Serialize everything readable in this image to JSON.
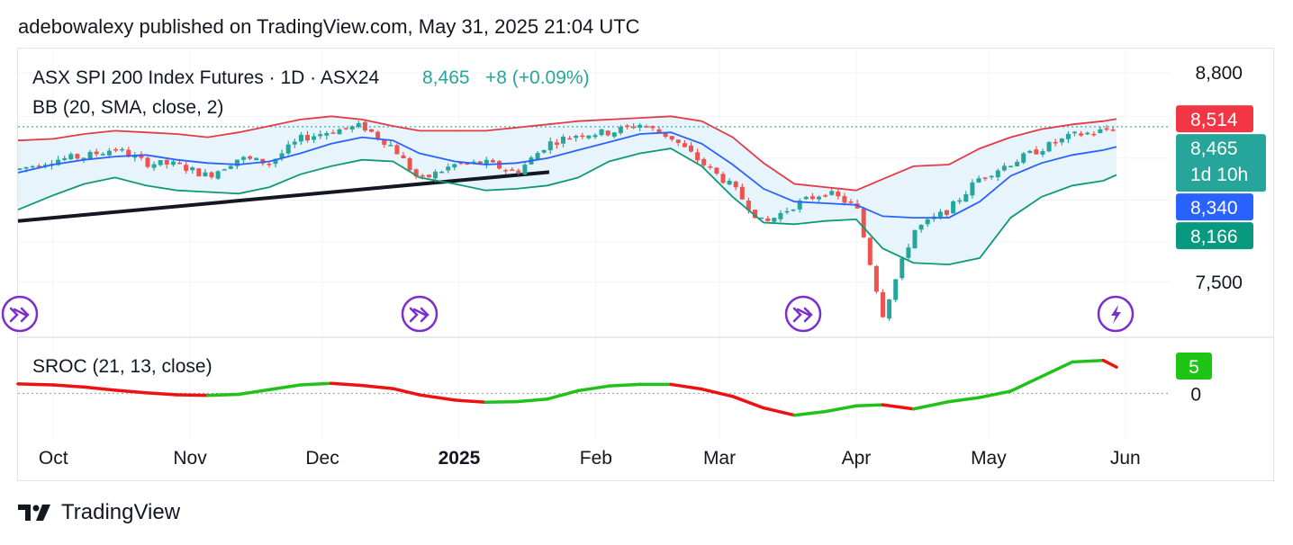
{
  "header": {
    "published": "adebowalexy published on TradingView.com, May 31, 2025 21:04 UTC"
  },
  "footer": {
    "brand": "TradingView"
  },
  "colors": {
    "up": "#26a69a",
    "down": "#ef5350",
    "bb_upper": "#e53945",
    "bb_basis": "#2962ff",
    "bb_lower": "#0f9a76",
    "bb_fill": "#e8f4fb",
    "sroc_up": "#22c11a",
    "sroc_down": "#ee1111",
    "trendline": "#131722",
    "event": "#7b2fd0"
  },
  "chart_data": [
    {
      "type": "candlestick",
      "title": "ASX SPI 200 Index Futures · 1D · ASX24",
      "last_price": "8,465",
      "change": "+8 (+0.09%)",
      "indicator_label": "BB (20, SMA, close, 2)",
      "x_labels": [
        "Oct",
        "Nov",
        "Dec",
        "2025",
        "Feb",
        "Mar",
        "Apr",
        "May",
        "Jun"
      ],
      "y_ticks": [
        "8,800",
        "7,500"
      ],
      "price_badges": [
        {
          "label": "8,514",
          "value": 8514,
          "color": "#f23645",
          "role": "bb-upper"
        },
        {
          "label": "8,465",
          "sub": "1d 10h",
          "value": 8465,
          "color": "#26a69a",
          "role": "last-price"
        },
        {
          "label": "8,340",
          "value": 8340,
          "color": "#2962ff",
          "role": "bb-basis"
        },
        {
          "label": "8,166",
          "value": 8166,
          "color": "#089981",
          "role": "bb-lower"
        }
      ],
      "ylim": [
        7175,
        8850
      ],
      "close_series": [
        {
          "date": "2024-09-23",
          "close": 8200
        },
        {
          "date": "2024-10-01",
          "close": 8260
        },
        {
          "date": "2024-10-08",
          "close": 8280
        },
        {
          "date": "2024-10-15",
          "close": 8330
        },
        {
          "date": "2024-10-22",
          "close": 8240
        },
        {
          "date": "2024-10-29",
          "close": 8230
        },
        {
          "date": "2024-11-05",
          "close": 8160
        },
        {
          "date": "2024-11-12",
          "close": 8270
        },
        {
          "date": "2024-11-19",
          "close": 8240
        },
        {
          "date": "2024-11-26",
          "close": 8390
        },
        {
          "date": "2024-12-03",
          "close": 8440
        },
        {
          "date": "2024-12-10",
          "close": 8470
        },
        {
          "date": "2024-12-17",
          "close": 8340
        },
        {
          "date": "2024-12-23",
          "close": 8130
        },
        {
          "date": "2024-12-31",
          "close": 8230
        },
        {
          "date": "2025-01-07",
          "close": 8240
        },
        {
          "date": "2025-01-14",
          "close": 8180
        },
        {
          "date": "2025-01-21",
          "close": 8360
        },
        {
          "date": "2025-01-28",
          "close": 8420
        },
        {
          "date": "2025-02-04",
          "close": 8430
        },
        {
          "date": "2025-02-11",
          "close": 8480
        },
        {
          "date": "2025-02-18",
          "close": 8400
        },
        {
          "date": "2025-02-25",
          "close": 8240
        },
        {
          "date": "2025-03-04",
          "close": 8090
        },
        {
          "date": "2025-03-11",
          "close": 7860
        },
        {
          "date": "2025-03-18",
          "close": 7980
        },
        {
          "date": "2025-03-25",
          "close": 8060
        },
        {
          "date": "2025-04-01",
          "close": 7970
        },
        {
          "date": "2025-04-07",
          "close": 7300
        },
        {
          "date": "2025-04-14",
          "close": 7820
        },
        {
          "date": "2025-04-22",
          "close": 7950
        },
        {
          "date": "2025-04-29",
          "close": 8150
        },
        {
          "date": "2025-05-06",
          "close": 8240
        },
        {
          "date": "2025-05-13",
          "close": 8330
        },
        {
          "date": "2025-05-20",
          "close": 8410
        },
        {
          "date": "2025-05-27",
          "close": 8440
        },
        {
          "date": "2025-05-30",
          "close": 8465
        }
      ],
      "bollinger": {
        "upper": [
          8380,
          8390,
          8420,
          8440,
          8430,
          8420,
          8400,
          8430,
          8470,
          8510,
          8530,
          8510,
          8470,
          8440,
          8440,
          8440,
          8460,
          8480,
          8500,
          8510,
          8520,
          8530,
          8500,
          8400,
          8240,
          8110,
          8090,
          8070,
          8140,
          8220,
          8230,
          8330,
          8400,
          8450,
          8480,
          8500,
          8514
        ],
        "basis": [
          8180,
          8230,
          8260,
          8280,
          8290,
          8260,
          8240,
          8230,
          8250,
          8300,
          8360,
          8400,
          8380,
          8300,
          8250,
          8230,
          8240,
          8270,
          8320,
          8370,
          8420,
          8430,
          8360,
          8230,
          8080,
          8000,
          7990,
          7980,
          7910,
          7900,
          7900,
          8000,
          8160,
          8240,
          8290,
          8320,
          8340
        ],
        "lower": [
          7950,
          8040,
          8110,
          8150,
          8100,
          8070,
          8060,
          8050,
          8090,
          8170,
          8220,
          8260,
          8250,
          8150,
          8110,
          8070,
          8080,
          8100,
          8150,
          8250,
          8300,
          8330,
          8220,
          8030,
          7870,
          7860,
          7880,
          7890,
          7710,
          7620,
          7610,
          7650,
          7900,
          8030,
          8100,
          8130,
          8166
        ]
      },
      "trendline": [
        {
          "date": "2024-09-23",
          "price": 7880
        },
        {
          "date": "2025-01-28",
          "price": 8200
        }
      ]
    },
    {
      "type": "line",
      "title": "SROC (21, 13, close)",
      "y_ticks": [
        "0"
      ],
      "value_badge": "5",
      "series": [
        {
          "values": [
            1.8,
            1.6,
            1.2,
            0.6,
            0.1,
            -0.3,
            -0.4,
            -0.2,
            0.7,
            1.6,
            1.9,
            1.5,
            0.9,
            -0.3,
            -1.3,
            -1.7,
            -1.6,
            -1.1,
            0.5,
            1.4,
            1.7,
            1.7,
            0.8,
            -0.6,
            -2.8,
            -4.2,
            -3.5,
            -2.4,
            -2.2,
            -3.0,
            -1.6,
            -0.8,
            0.4,
            3.2,
            6.0,
            6.3,
            5.0
          ]
        }
      ],
      "ylim": [
        -7,
        9
      ]
    }
  ]
}
